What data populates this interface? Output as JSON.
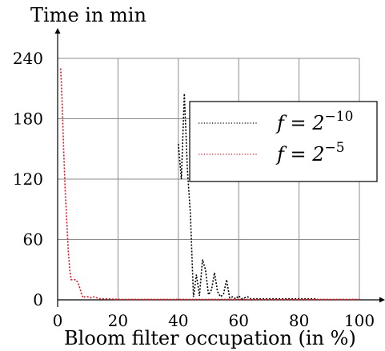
{
  "chart_data": {
    "type": "line",
    "ylabel": "Time in min",
    "xlabel": "Bloom filter occupation (in %)",
    "xlim": [
      0,
      100
    ],
    "ylim": [
      0,
      240
    ],
    "xticks": [
      "0",
      "20",
      "40",
      "60",
      "80",
      "100"
    ],
    "yticks": [
      "0",
      "60",
      "120",
      "180",
      "240"
    ],
    "grid": true,
    "legend_position": "top-right",
    "series": [
      {
        "name": "f = 2^{-10}",
        "legend_base": "f = 2",
        "legend_exp": "−10",
        "color": "#000000",
        "style": "dotted",
        "x": [
          40,
          41,
          42,
          43,
          44,
          45,
          46,
          47,
          48,
          49,
          50,
          51,
          52,
          53,
          54,
          55,
          56,
          57,
          58,
          59,
          60,
          61,
          62,
          63,
          64,
          66,
          68,
          70,
          72,
          75,
          78,
          80,
          83,
          86
        ],
        "y": [
          155,
          120,
          205,
          130,
          85,
          3,
          25,
          4,
          40,
          30,
          5,
          10,
          27,
          8,
          3,
          6,
          20,
          2,
          3,
          1,
          4,
          1,
          2,
          3,
          1,
          1,
          1,
          1,
          1,
          1,
          1,
          1,
          1,
          1
        ]
      },
      {
        "name": "f = 2^{-5}",
        "legend_base": "f = 2",
        "legend_exp": "−5",
        "color": "#e01020",
        "style": "dotted",
        "x": [
          1,
          1.5,
          2,
          2.5,
          3,
          3.5,
          4,
          4.5,
          5,
          5.5,
          6,
          6.5,
          7,
          7.5,
          8,
          8.5,
          9,
          10,
          11,
          12,
          13,
          14,
          16,
          20,
          30,
          40,
          50,
          60,
          70,
          80,
          90,
          100
        ],
        "y": [
          230,
          195,
          150,
          110,
          80,
          50,
          30,
          20,
          20,
          20,
          20,
          18,
          15,
          10,
          5,
          2,
          3,
          3,
          2,
          3,
          2,
          1,
          1,
          0.5,
          0.5,
          0.5,
          0.5,
          0.5,
          0.5,
          0.5,
          0.5,
          0.5
        ]
      }
    ]
  }
}
